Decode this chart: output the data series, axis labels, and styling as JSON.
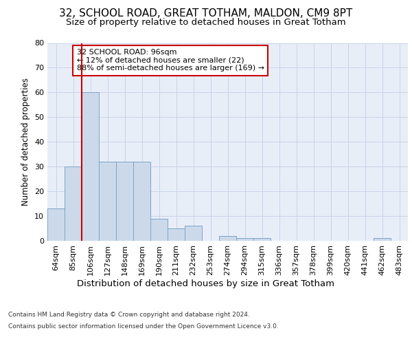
{
  "title1": "32, SCHOOL ROAD, GREAT TOTHAM, MALDON, CM9 8PT",
  "title2": "Size of property relative to detached houses in Great Totham",
  "xlabel": "Distribution of detached houses by size in Great Totham",
  "ylabel": "Number of detached properties",
  "categories": [
    "64sqm",
    "85sqm",
    "106sqm",
    "127sqm",
    "148sqm",
    "169sqm",
    "190sqm",
    "211sqm",
    "232sqm",
    "253sqm",
    "274sqm",
    "294sqm",
    "315sqm",
    "336sqm",
    "357sqm",
    "378sqm",
    "399sqm",
    "420sqm",
    "441sqm",
    "462sqm",
    "483sqm"
  ],
  "values": [
    13,
    30,
    60,
    32,
    32,
    32,
    9,
    5,
    6,
    0,
    2,
    1,
    1,
    0,
    0,
    0,
    0,
    0,
    0,
    1,
    0
  ],
  "bar_color": "#ccd9ea",
  "bar_edge_color": "#7ba5c8",
  "property_line_x": 1.5,
  "annotation_line1": "32 SCHOOL ROAD: 96sqm",
  "annotation_line2": "← 12% of detached houses are smaller (22)",
  "annotation_line3": "88% of semi-detached houses are larger (169) →",
  "annotation_box_color": "white",
  "annotation_box_edge": "#cc0000",
  "property_line_color": "#cc0000",
  "ylim": [
    0,
    80
  ],
  "yticks": [
    0,
    10,
    20,
    30,
    40,
    50,
    60,
    70,
    80
  ],
  "grid_color": "#c8d4e8",
  "bg_color": "#e8eef8",
  "title1_fontsize": 11,
  "title2_fontsize": 9.5,
  "xlabel_fontsize": 9.5,
  "ylabel_fontsize": 8.5,
  "tick_fontsize": 8,
  "annotation_fontsize": 8,
  "footer1": "Contains HM Land Registry data © Crown copyright and database right 2024.",
  "footer2": "Contains public sector information licensed under the Open Government Licence v3.0.",
  "footer_fontsize": 6.5
}
